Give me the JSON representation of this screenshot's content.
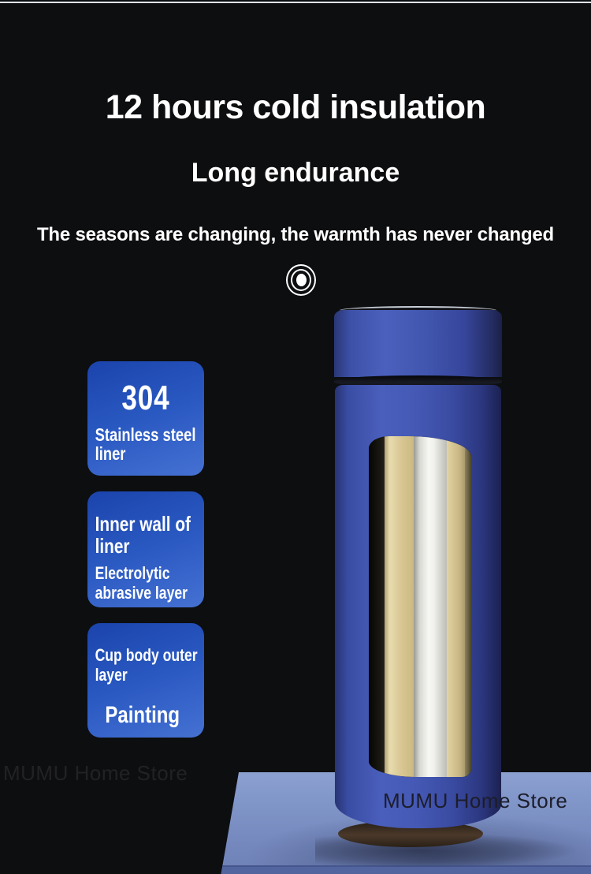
{
  "header": {
    "title": "12 hours cold insulation",
    "subtitle": "Long endurance",
    "tagline": "The seasons are changing, the warmth has never changed"
  },
  "icons": {
    "target_icon": "concentric-circles"
  },
  "feature_cards": [
    {
      "value": "304",
      "label_line1": "Stainless steel",
      "label_line2": "liner"
    },
    {
      "title_line1": "Inner wall of",
      "title_line2": "liner",
      "sub_line1": "Electrolytic",
      "sub_line2": "abrasive layer"
    },
    {
      "title_line1": "Cup body outer",
      "title_line2": "layer",
      "value": "Painting"
    }
  ],
  "watermarks": {
    "left": "MUMU Home Store",
    "right": "MUMU Home Store"
  },
  "colors": {
    "background": "#0d0e10",
    "card_gradient_top": "#1b44ac",
    "card_gradient_bottom": "#4571d2",
    "bottle_blue": "#4458b4",
    "liner_gold": "#d9c795",
    "liner_steel_white": "#f7f7f4",
    "platform_blue": "#8095c8",
    "platform_front_edge": "#53659f",
    "text_white": "#ffffff"
  }
}
